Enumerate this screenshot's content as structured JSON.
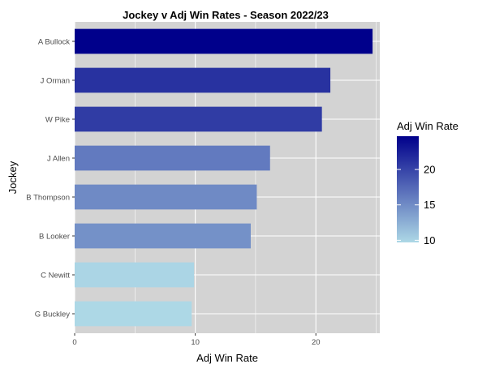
{
  "chart_data": {
    "type": "bar",
    "orientation": "horizontal",
    "title": "Jockey v Adj Win Rates - Season 2022/23",
    "xlabel": "Adj Win Rate",
    "ylabel": "Jockey",
    "categories": [
      "A Bullock",
      "J Orman",
      "W Pike",
      "J Allen",
      "B Thompson",
      "B Looker",
      "C Newitt",
      "G Buckley"
    ],
    "values": [
      24.7,
      21.2,
      20.5,
      16.2,
      15.1,
      14.6,
      9.9,
      9.7
    ],
    "xlim": [
      0,
      25.3
    ],
    "x_ticks": [
      0,
      10,
      20
    ],
    "grid": true,
    "background": "#d3d3d3",
    "legend": {
      "title": "Adj Win Rate",
      "position": "right",
      "ticks": [
        10,
        15,
        20
      ],
      "range": [
        9.7,
        24.7
      ],
      "color_low": "#add8e6",
      "color_high": "#00008b"
    }
  }
}
